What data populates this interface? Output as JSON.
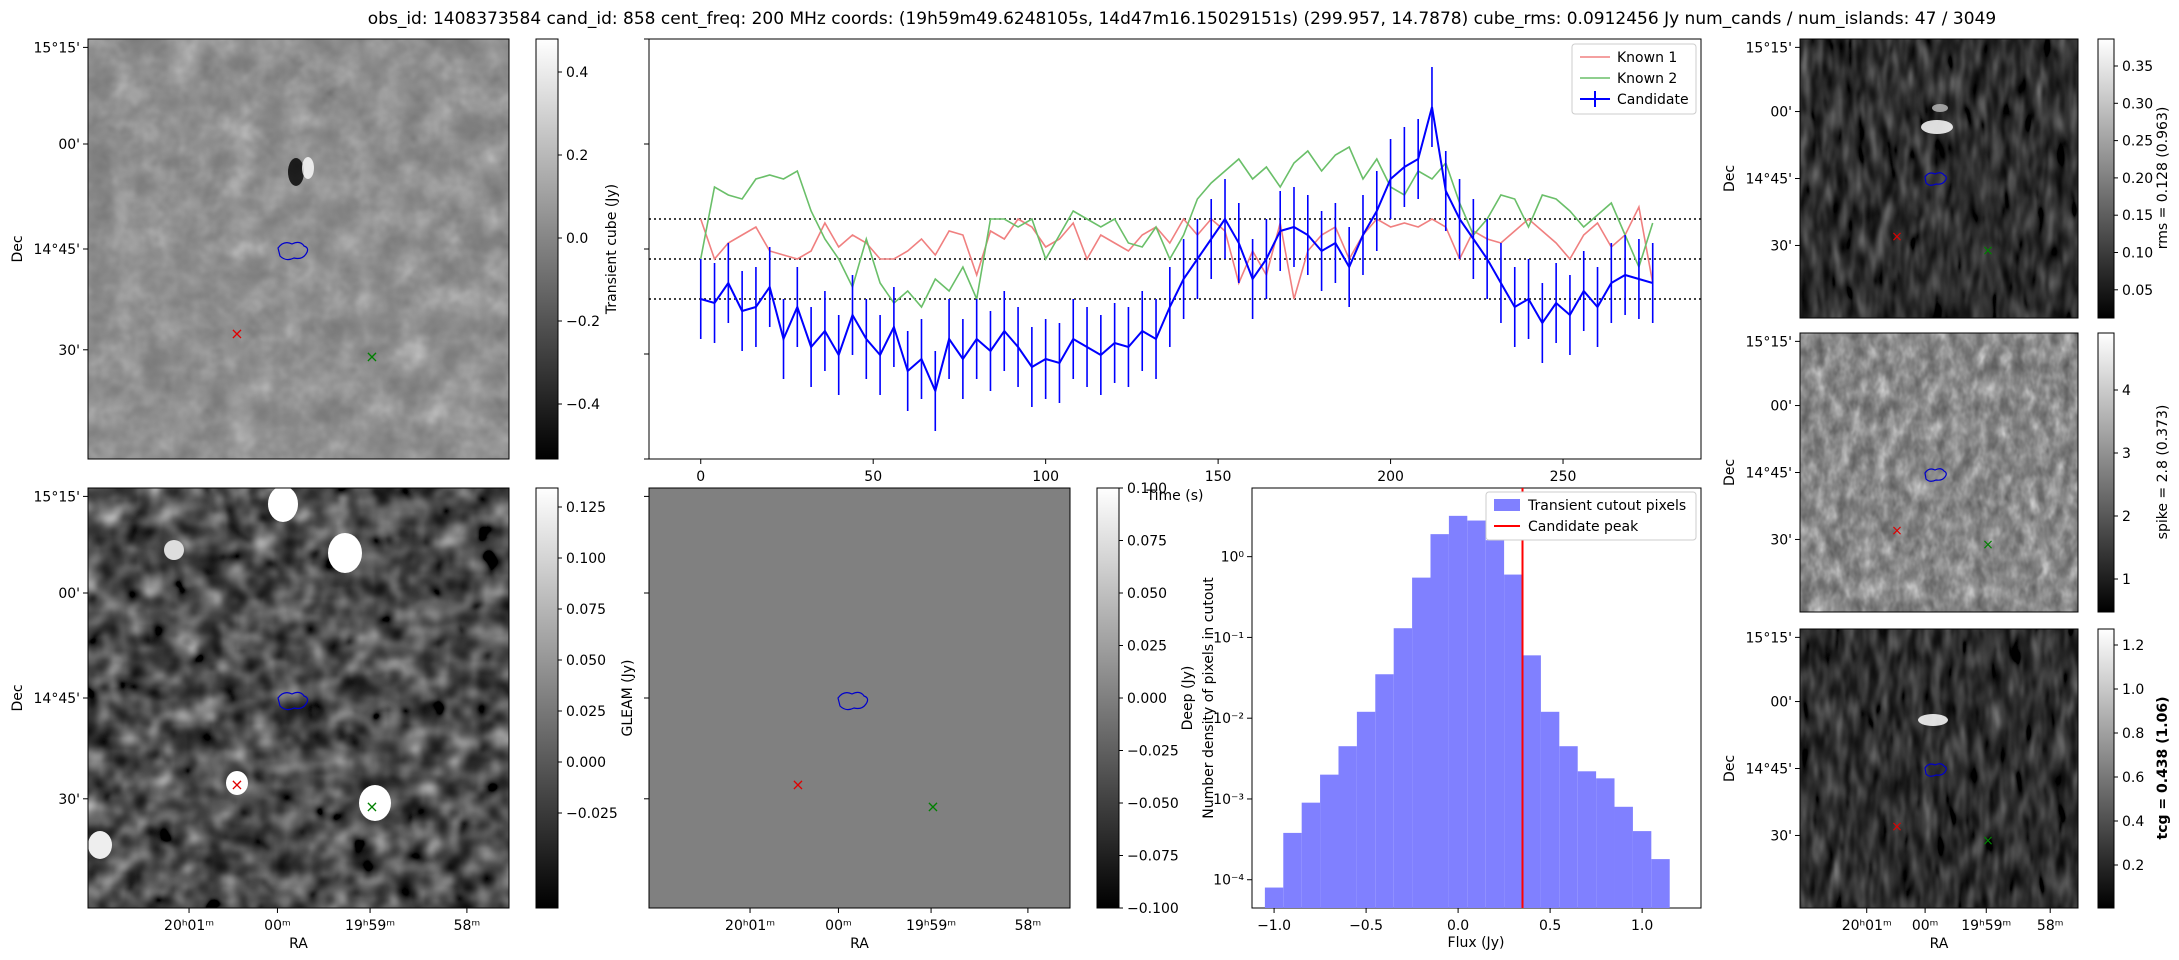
{
  "header": {
    "title": "obs_id: 1408373584 cand_id: 858 cent_freq: 200 MHz coords: (19h59m49.6248105s, 14d47m16.15029151s) (299.957, 14.7878) cube_rms: 0.0912456 Jy num_cands / num_islands: 47 / 3049"
  },
  "sky_axes": {
    "dec_ticks": [
      "15°15'",
      "00'",
      "14°45'",
      "30'"
    ],
    "ra_ticks": [
      "20ʰ01ᵐ",
      "00ᵐ",
      "19ʰ59ᵐ",
      "58ᵐ"
    ],
    "xlabel": "RA",
    "ylabel": "Dec"
  },
  "panels": {
    "transient_cube": {
      "colorbar_label": "Transient cube (Jy)",
      "colorbar_ticks": [
        "0.4",
        "0.2",
        "0.0",
        "−0.2",
        "−0.4"
      ]
    },
    "deep": {
      "colorbar_label": "Deep (Jy)",
      "colorbar_ticks": [
        "0.125",
        "0.100",
        "0.075",
        "0.050",
        "0.025",
        "0.000",
        "−0.025"
      ]
    },
    "gleam": {
      "colorbar_label": "GLEAM (Jy)",
      "colorbar_ticks": [
        "0.100",
        "0.075",
        "0.050",
        "0.025",
        "0.000",
        "−0.025",
        "−0.050",
        "−0.075",
        "−0.100"
      ]
    },
    "rms": {
      "colorbar_label": "rms = 0.128 (0.963)",
      "colorbar_ticks": [
        "0.35",
        "0.30",
        "0.25",
        "0.20",
        "0.15",
        "0.10",
        "0.05"
      ]
    },
    "spike": {
      "colorbar_label": "spike = 2.8 (0.373)",
      "colorbar_ticks": [
        "4",
        "3",
        "2",
        "1"
      ]
    },
    "tcg": {
      "colorbar_label": "tcg = 0.438 (1.06)",
      "colorbar_ticks": [
        "1.2",
        "1.0",
        "0.8",
        "0.6",
        "0.4",
        "0.2"
      ]
    }
  },
  "chart_data": [
    {
      "type": "line",
      "xlabel": "Time (s)",
      "ylabel": "",
      "xlim": [
        -15,
        290
      ],
      "ylim": [
        -0.5,
        0.55
      ],
      "x_ticks": [
        0,
        50,
        100,
        150,
        200,
        250
      ],
      "hlines": [
        -0.1,
        0.0,
        0.1
      ],
      "legend": "top-right",
      "colors": {
        "known1": "#f08080",
        "known2": "#6abf69",
        "candidate": "#0000ff"
      },
      "x": [
        0,
        4,
        8,
        12,
        16,
        20,
        24,
        28,
        32,
        36,
        40,
        44,
        48,
        52,
        56,
        60,
        64,
        68,
        72,
        76,
        80,
        84,
        88,
        92,
        96,
        100,
        104,
        108,
        112,
        116,
        120,
        124,
        128,
        132,
        136,
        140,
        144,
        148,
        152,
        156,
        160,
        164,
        168,
        172,
        176,
        180,
        184,
        188,
        192,
        196,
        200,
        204,
        208,
        212,
        216,
        220,
        224,
        228,
        232,
        236,
        240,
        244,
        248,
        252,
        256,
        260,
        264,
        268,
        272,
        276
      ],
      "series": [
        {
          "name": "Known 1",
          "values": [
            0.1,
            0.0,
            0.04,
            0.06,
            0.08,
            0.02,
            0.01,
            0.0,
            0.02,
            0.09,
            0.03,
            0.06,
            0.04,
            0.0,
            0.0,
            0.02,
            0.05,
            0.01,
            0.07,
            0.06,
            -0.04,
            0.07,
            0.05,
            0.1,
            0.08,
            0.03,
            0.05,
            0.09,
            0.0,
            0.06,
            0.04,
            0.02,
            0.06,
            0.08,
            0.04,
            0.1,
            0.06,
            0.1,
            0.07,
            -0.06,
            0.02,
            -0.04,
            0.09,
            -0.1,
            0.02,
            0.06,
            0.08,
            0.0,
            0.06,
            0.1,
            0.08,
            0.09,
            0.08,
            0.1,
            0.08,
            0.0,
            0.07,
            0.05,
            0.04,
            0.07,
            0.1,
            0.07,
            0.04,
            0.0,
            0.06,
            0.09,
            0.03,
            0.06,
            0.13,
            -0.06
          ]
        },
        {
          "name": "Known 2",
          "values": [
            0.0,
            0.18,
            0.16,
            0.15,
            0.2,
            0.21,
            0.2,
            0.22,
            0.12,
            0.05,
            0.0,
            -0.07,
            0.05,
            -0.06,
            -0.11,
            -0.08,
            -0.12,
            -0.05,
            -0.08,
            -0.02,
            -0.1,
            0.1,
            0.1,
            0.08,
            0.1,
            0.0,
            0.06,
            0.12,
            0.1,
            0.08,
            0.1,
            0.04,
            0.03,
            0.08,
            0.0,
            0.06,
            0.15,
            0.19,
            0.22,
            0.25,
            0.2,
            0.23,
            0.18,
            0.24,
            0.27,
            0.22,
            0.26,
            0.28,
            0.2,
            0.25,
            0.18,
            0.16,
            0.22,
            0.2,
            0.24,
            0.14,
            0.06,
            0.1,
            0.16,
            0.15,
            0.08,
            0.16,
            0.15,
            0.12,
            0.08,
            0.11,
            0.14,
            0.06,
            -0.02,
            0.09
          ]
        },
        {
          "name": "Candidate",
          "values": [
            -0.1,
            -0.11,
            -0.06,
            -0.13,
            -0.12,
            -0.07,
            -0.2,
            -0.12,
            -0.22,
            -0.18,
            -0.24,
            -0.14,
            -0.2,
            -0.24,
            -0.17,
            -0.28,
            -0.25,
            -0.33,
            -0.2,
            -0.25,
            -0.2,
            -0.23,
            -0.18,
            -0.22,
            -0.27,
            -0.25,
            -0.26,
            -0.2,
            -0.22,
            -0.24,
            -0.21,
            -0.22,
            -0.18,
            -0.2,
            -0.12,
            -0.05,
            0.0,
            0.05,
            0.1,
            0.04,
            -0.05,
            0.0,
            0.07,
            0.08,
            0.06,
            0.02,
            0.04,
            -0.02,
            0.06,
            0.12,
            0.2,
            0.23,
            0.25,
            0.38,
            0.17,
            0.1,
            0.05,
            0.0,
            -0.06,
            -0.12,
            -0.1,
            -0.16,
            -0.11,
            -0.14,
            -0.08,
            -0.12,
            -0.06,
            -0.04,
            -0.05,
            -0.06
          ],
          "errors": [
            0.1,
            0.1,
            0.1,
            0.1,
            0.1,
            0.1,
            0.1,
            0.1,
            0.1,
            0.1,
            0.1,
            0.1,
            0.1,
            0.1,
            0.1,
            0.1,
            0.1,
            0.1,
            0.1,
            0.1,
            0.1,
            0.1,
            0.1,
            0.1,
            0.1,
            0.1,
            0.1,
            0.1,
            0.1,
            0.1,
            0.1,
            0.1,
            0.1,
            0.1,
            0.1,
            0.1,
            0.1,
            0.1,
            0.1,
            0.1,
            0.1,
            0.1,
            0.1,
            0.1,
            0.1,
            0.1,
            0.1,
            0.1,
            0.1,
            0.1,
            0.1,
            0.1,
            0.1,
            0.1,
            0.1,
            0.1,
            0.1,
            0.1,
            0.1,
            0.1,
            0.1,
            0.1,
            0.1,
            0.1,
            0.1,
            0.1,
            0.1,
            0.1,
            0.1,
            0.1
          ]
        }
      ]
    },
    {
      "type": "bar",
      "xlabel": "Flux (Jy)",
      "ylabel": "Number density of pixels in cutout",
      "y_scale": "log",
      "x_ticks": [
        -1.0,
        -0.5,
        0.0,
        0.5,
        1.0
      ],
      "y_ticks": [
        "10⁰",
        "10⁻¹",
        "10⁻²",
        "10⁻³",
        "10⁻⁴"
      ],
      "legend": "top-right",
      "bin_edges": [
        -1.0,
        -0.9,
        -0.8,
        -0.7,
        -0.6,
        -0.5,
        -0.4,
        -0.3,
        -0.2,
        -0.1,
        0.0,
        0.1,
        0.2,
        0.3,
        0.4,
        0.5,
        0.6,
        0.7,
        0.8,
        0.9,
        1.0,
        1.1,
        1.2
      ],
      "values": [
        8e-05,
        0.00038,
        0.0009,
        0.002,
        0.0045,
        0.012,
        0.035,
        0.13,
        0.55,
        1.9,
        3.2,
        2.8,
        1.6,
        0.6,
        0.06,
        0.012,
        0.0045,
        0.0022,
        0.0018,
        0.0008,
        0.0004,
        0.00018
      ],
      "series": [
        {
          "name": "Transient cutout pixels",
          "color": "#8080ff"
        }
      ],
      "vline": {
        "name": "Candidate peak",
        "x": 0.35,
        "color": "#ff0000"
      }
    }
  ]
}
